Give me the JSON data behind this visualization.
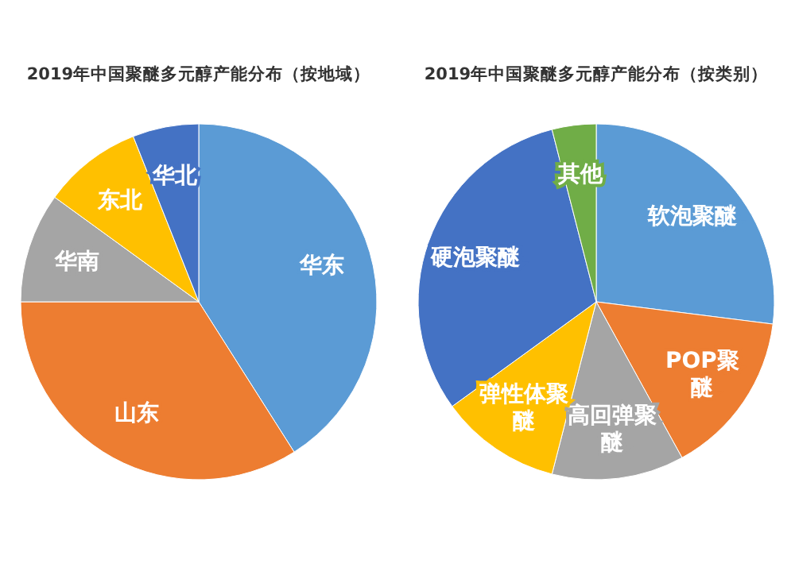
{
  "chart_data": [
    {
      "type": "pie",
      "title": "2019年中国聚醚多元醇产能分布（按地域）",
      "categories": [
        "华东",
        "山东",
        "华南",
        "东北",
        "华北"
      ],
      "values": [
        41,
        34,
        10,
        9,
        6
      ],
      "colors": [
        "#5b9bd5",
        "#ed7d31",
        "#a5a5a5",
        "#ffc000",
        "#4472c4"
      ]
    },
    {
      "type": "pie",
      "title": "2019年中国聚醚多元醇产能分布（按类别）",
      "categories": [
        "软泡聚醚",
        "POP聚醚",
        "高回弹聚醚",
        "弹性体聚醚",
        "硬泡聚醚",
        "其他"
      ],
      "values": [
        27,
        15,
        12,
        11,
        31,
        4
      ],
      "colors": [
        "#5b9bd5",
        "#ed7d31",
        "#a5a5a5",
        "#ffc000",
        "#4472c4",
        "#70ad47"
      ]
    }
  ]
}
